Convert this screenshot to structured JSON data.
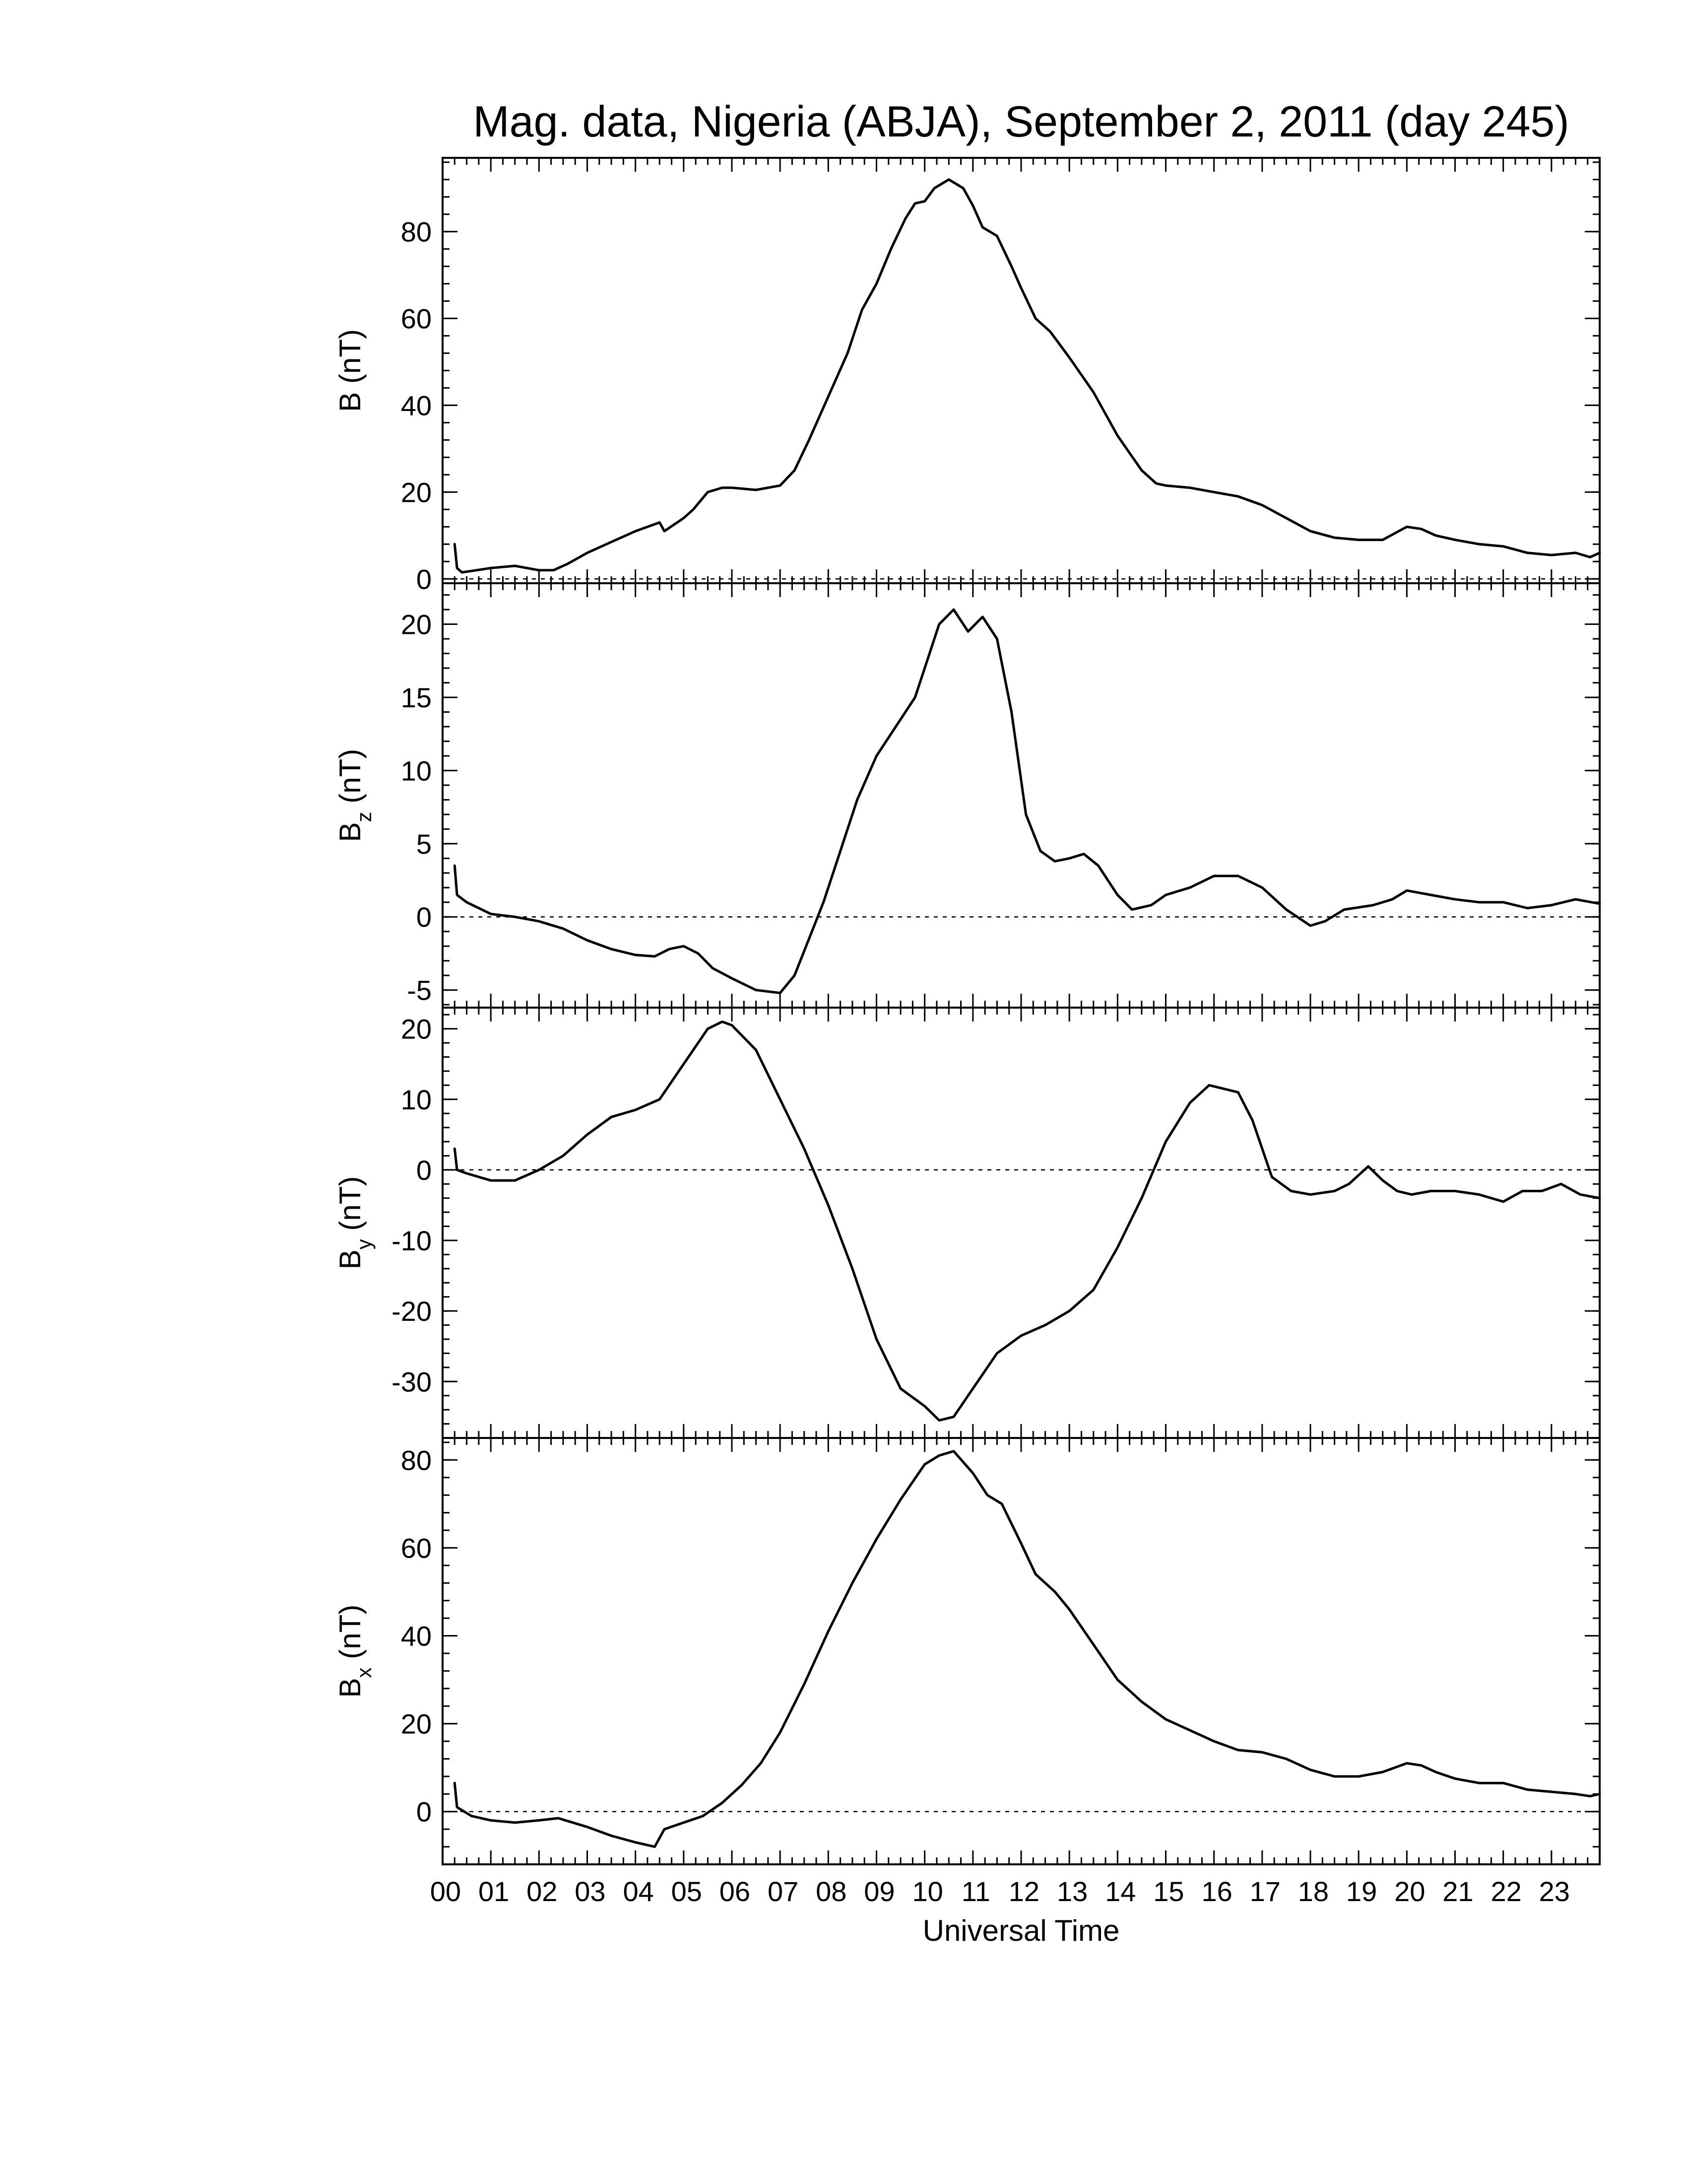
{
  "chart_data": {
    "type": "line",
    "title": "Mag. data, Nigeria (ABJA), September 2, 2011 (day 245)",
    "xlabel": "Universal Time",
    "x_unit": "hours UT",
    "xlim": [
      0,
      24
    ],
    "x_tick_labels": [
      "00",
      "01",
      "02",
      "03",
      "04",
      "05",
      "06",
      "07",
      "08",
      "09",
      "10",
      "11",
      "12",
      "13",
      "14",
      "15",
      "16",
      "17",
      "18",
      "19",
      "20",
      "21",
      "22",
      "23"
    ],
    "zero_line": "dotted",
    "panels": [
      {
        "id": "B",
        "ylabel": "B (nT)",
        "ylabel_main": "B",
        "ylabel_sub": "",
        "ylabel_unit": " (nT)",
        "ylim": [
          -1,
          97
        ],
        "yticks": [
          0,
          20,
          40,
          60,
          80
        ],
        "ytick_labels": [
          "0",
          "20",
          "40",
          "60",
          "80"
        ],
        "points": [
          [
            0.25,
            8
          ],
          [
            0.3,
            2.5
          ],
          [
            0.4,
            1.5
          ],
          [
            0.7,
            2
          ],
          [
            1.0,
            2.5
          ],
          [
            1.5,
            3
          ],
          [
            2.0,
            2
          ],
          [
            2.3,
            2
          ],
          [
            2.6,
            3.5
          ],
          [
            3.0,
            6
          ],
          [
            3.5,
            8.5
          ],
          [
            4.0,
            11
          ],
          [
            4.5,
            13
          ],
          [
            4.6,
            11
          ],
          [
            5.0,
            14
          ],
          [
            5.2,
            16
          ],
          [
            5.5,
            20
          ],
          [
            5.8,
            21
          ],
          [
            6.0,
            21
          ],
          [
            6.5,
            20.5
          ],
          [
            7.0,
            21.5
          ],
          [
            7.3,
            25
          ],
          [
            7.6,
            32
          ],
          [
            8.0,
            42
          ],
          [
            8.4,
            52
          ],
          [
            8.7,
            62
          ],
          [
            9.0,
            68
          ],
          [
            9.3,
            76
          ],
          [
            9.6,
            83
          ],
          [
            9.8,
            86.5
          ],
          [
            10.0,
            87
          ],
          [
            10.2,
            90
          ],
          [
            10.5,
            92
          ],
          [
            10.8,
            90
          ],
          [
            11.0,
            86
          ],
          [
            11.2,
            81
          ],
          [
            11.5,
            79
          ],
          [
            11.8,
            72
          ],
          [
            12.0,
            67
          ],
          [
            12.3,
            60
          ],
          [
            12.6,
            57
          ],
          [
            13.0,
            51
          ],
          [
            13.5,
            43
          ],
          [
            14.0,
            33
          ],
          [
            14.5,
            25
          ],
          [
            14.8,
            22
          ],
          [
            15.0,
            21.5
          ],
          [
            15.5,
            21
          ],
          [
            16.0,
            20
          ],
          [
            16.5,
            19
          ],
          [
            17.0,
            17
          ],
          [
            17.5,
            14
          ],
          [
            18.0,
            11
          ],
          [
            18.5,
            9.5
          ],
          [
            19.0,
            9
          ],
          [
            19.5,
            9
          ],
          [
            20.0,
            12
          ],
          [
            20.3,
            11.5
          ],
          [
            20.6,
            10
          ],
          [
            21.0,
            9
          ],
          [
            21.5,
            8
          ],
          [
            22.0,
            7.5
          ],
          [
            22.5,
            6
          ],
          [
            23.0,
            5.5
          ],
          [
            23.5,
            6
          ],
          [
            23.8,
            5
          ],
          [
            24.0,
            6
          ]
        ]
      },
      {
        "id": "Bz",
        "ylabel": "Bz (nT)",
        "ylabel_main": "B",
        "ylabel_sub": "z",
        "ylabel_unit": " (nT)",
        "ylim": [
          -6.2,
          22.8
        ],
        "yticks": [
          -5,
          0,
          5,
          10,
          15,
          20
        ],
        "ytick_labels": [
          "-5",
          "0",
          "5",
          "10",
          "15",
          "20"
        ],
        "points": [
          [
            0.25,
            3.5
          ],
          [
            0.3,
            1.5
          ],
          [
            0.5,
            1
          ],
          [
            1.0,
            0.2
          ],
          [
            1.5,
            0
          ],
          [
            2.0,
            -0.3
          ],
          [
            2.5,
            -0.8
          ],
          [
            3.0,
            -1.6
          ],
          [
            3.5,
            -2.2
          ],
          [
            4.0,
            -2.6
          ],
          [
            4.4,
            -2.7
          ],
          [
            4.7,
            -2.2
          ],
          [
            5.0,
            -2
          ],
          [
            5.3,
            -2.5
          ],
          [
            5.6,
            -3.5
          ],
          [
            6.0,
            -4.2
          ],
          [
            6.5,
            -5
          ],
          [
            7.0,
            -5.2
          ],
          [
            7.3,
            -4
          ],
          [
            7.6,
            -1.5
          ],
          [
            7.9,
            1
          ],
          [
            8.2,
            4
          ],
          [
            8.6,
            8
          ],
          [
            9.0,
            11
          ],
          [
            9.4,
            13
          ],
          [
            9.8,
            15
          ],
          [
            10.0,
            17
          ],
          [
            10.3,
            20
          ],
          [
            10.6,
            21
          ],
          [
            10.9,
            19.5
          ],
          [
            11.2,
            20.5
          ],
          [
            11.5,
            19
          ],
          [
            11.8,
            14
          ],
          [
            12.1,
            7
          ],
          [
            12.4,
            4.5
          ],
          [
            12.7,
            3.8
          ],
          [
            13.0,
            4
          ],
          [
            13.3,
            4.3
          ],
          [
            13.6,
            3.5
          ],
          [
            14.0,
            1.5
          ],
          [
            14.3,
            0.5
          ],
          [
            14.7,
            0.8
          ],
          [
            15.0,
            1.5
          ],
          [
            15.5,
            2
          ],
          [
            16.0,
            2.8
          ],
          [
            16.5,
            2.8
          ],
          [
            17.0,
            2
          ],
          [
            17.5,
            0.5
          ],
          [
            18.0,
            -0.6
          ],
          [
            18.3,
            -0.3
          ],
          [
            18.7,
            0.5
          ],
          [
            19.3,
            0.8
          ],
          [
            19.7,
            1.2
          ],
          [
            20.0,
            1.8
          ],
          [
            20.5,
            1.5
          ],
          [
            21.0,
            1.2
          ],
          [
            21.5,
            1
          ],
          [
            22.0,
            1
          ],
          [
            22.5,
            0.6
          ],
          [
            23.0,
            0.8
          ],
          [
            23.5,
            1.2
          ],
          [
            24.0,
            0.9
          ]
        ]
      },
      {
        "id": "By",
        "ylabel": "By (nT)",
        "ylabel_main": "B",
        "ylabel_sub": "y",
        "ylabel_unit": " (nT)",
        "ylim": [
          -38,
          23
        ],
        "yticks": [
          -30,
          -20,
          -10,
          0,
          10,
          20
        ],
        "ytick_labels": [
          "-30",
          "-20",
          "-10",
          "0",
          "10",
          "20"
        ],
        "points": [
          [
            0.25,
            3
          ],
          [
            0.3,
            0
          ],
          [
            0.5,
            -0.5
          ],
          [
            1.0,
            -1.5
          ],
          [
            1.5,
            -1.5
          ],
          [
            2.0,
            0
          ],
          [
            2.5,
            2
          ],
          [
            3.0,
            5
          ],
          [
            3.5,
            7.5
          ],
          [
            4.0,
            8.5
          ],
          [
            4.5,
            10
          ],
          [
            5.0,
            15
          ],
          [
            5.5,
            20
          ],
          [
            5.8,
            21
          ],
          [
            6.0,
            20.5
          ],
          [
            6.5,
            17
          ],
          [
            7.0,
            10
          ],
          [
            7.5,
            3
          ],
          [
            8.0,
            -5
          ],
          [
            8.5,
            -14
          ],
          [
            9.0,
            -24
          ],
          [
            9.5,
            -31
          ],
          [
            10.0,
            -33.5
          ],
          [
            10.3,
            -35.5
          ],
          [
            10.6,
            -35
          ],
          [
            11.0,
            -31
          ],
          [
            11.5,
            -26
          ],
          [
            12.0,
            -23.5
          ],
          [
            12.5,
            -22
          ],
          [
            13.0,
            -20
          ],
          [
            13.5,
            -17
          ],
          [
            14.0,
            -11
          ],
          [
            14.5,
            -4
          ],
          [
            15.0,
            4
          ],
          [
            15.5,
            9.5
          ],
          [
            15.9,
            12
          ],
          [
            16.5,
            11
          ],
          [
            16.8,
            7
          ],
          [
            17.2,
            -1
          ],
          [
            17.6,
            -3
          ],
          [
            18.0,
            -3.5
          ],
          [
            18.5,
            -3
          ],
          [
            18.8,
            -2
          ],
          [
            19.2,
            0.5
          ],
          [
            19.5,
            -1.5
          ],
          [
            19.8,
            -3
          ],
          [
            20.1,
            -3.5
          ],
          [
            20.5,
            -3
          ],
          [
            21.0,
            -3
          ],
          [
            21.5,
            -3.5
          ],
          [
            22.0,
            -4.5
          ],
          [
            22.4,
            -3
          ],
          [
            22.8,
            -3
          ],
          [
            23.2,
            -2
          ],
          [
            23.6,
            -3.5
          ],
          [
            24.0,
            -4
          ]
        ]
      },
      {
        "id": "Bx",
        "ylabel": "Bx (nT)",
        "ylabel_main": "B",
        "ylabel_sub": "x",
        "ylabel_unit": " (nT)",
        "ylim": [
          -12,
          85
        ],
        "yticks": [
          0,
          20,
          40,
          60,
          80
        ],
        "ytick_labels": [
          "0",
          "20",
          "40",
          "60",
          "80"
        ],
        "points": [
          [
            0.25,
            6.5
          ],
          [
            0.3,
            1
          ],
          [
            0.6,
            -1
          ],
          [
            1.0,
            -2
          ],
          [
            1.5,
            -2.5
          ],
          [
            2.0,
            -2
          ],
          [
            2.4,
            -1.5
          ],
          [
            3.0,
            -3.5
          ],
          [
            3.5,
            -5.5
          ],
          [
            4.0,
            -7
          ],
          [
            4.4,
            -8
          ],
          [
            4.6,
            -4
          ],
          [
            5.0,
            -2.5
          ],
          [
            5.4,
            -1
          ],
          [
            5.8,
            2
          ],
          [
            6.2,
            6
          ],
          [
            6.6,
            11
          ],
          [
            7.0,
            18
          ],
          [
            7.5,
            29
          ],
          [
            8.0,
            41
          ],
          [
            8.5,
            52
          ],
          [
            9.0,
            62
          ],
          [
            9.5,
            71
          ],
          [
            10.0,
            79
          ],
          [
            10.3,
            81
          ],
          [
            10.6,
            82
          ],
          [
            11.0,
            77
          ],
          [
            11.3,
            72
          ],
          [
            11.6,
            70
          ],
          [
            12.0,
            61
          ],
          [
            12.3,
            54
          ],
          [
            12.7,
            50
          ],
          [
            13.0,
            46
          ],
          [
            13.5,
            38
          ],
          [
            14.0,
            30
          ],
          [
            14.5,
            25
          ],
          [
            15.0,
            21
          ],
          [
            15.5,
            18.5
          ],
          [
            16.0,
            16
          ],
          [
            16.5,
            14
          ],
          [
            17.0,
            13.5
          ],
          [
            17.5,
            12
          ],
          [
            18.0,
            9.5
          ],
          [
            18.5,
            8
          ],
          [
            19.0,
            8
          ],
          [
            19.5,
            9
          ],
          [
            20.0,
            11
          ],
          [
            20.3,
            10.5
          ],
          [
            20.6,
            9
          ],
          [
            21.0,
            7.5
          ],
          [
            21.5,
            6.5
          ],
          [
            22.0,
            6.5
          ],
          [
            22.5,
            5
          ],
          [
            23.0,
            4.5
          ],
          [
            23.5,
            4
          ],
          [
            23.8,
            3.5
          ],
          [
            24.0,
            4
          ]
        ]
      }
    ]
  }
}
